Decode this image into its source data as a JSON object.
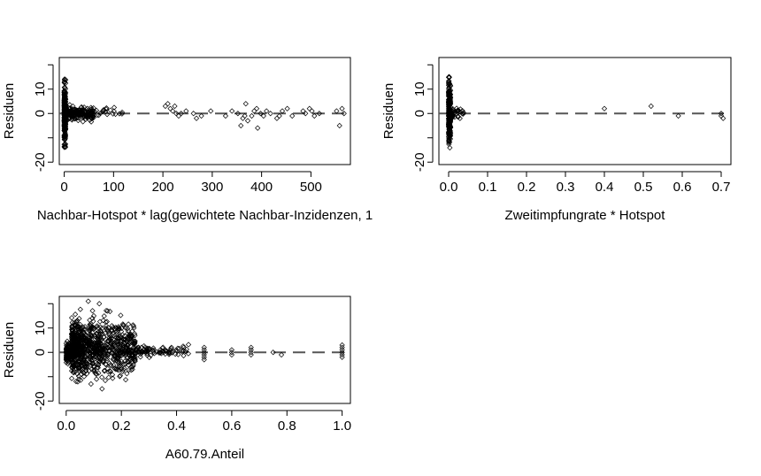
{
  "chart_data": [
    {
      "type": "scatter",
      "xlabel": "Nachbar-Hotspot * lag(gewichtete Nachbar-Inzidenzen, 1",
      "ylabel": "Residuen",
      "xlim": [
        -10,
        580
      ],
      "ylim": [
        -21,
        23
      ],
      "xticks": [
        0,
        100,
        200,
        300,
        400,
        500
      ],
      "yticks": [
        -20,
        -10,
        0,
        10,
        20
      ],
      "ytick_labels": [
        "-20",
        "",
        "0",
        "10",
        ""
      ],
      "reference_line": {
        "y": 0,
        "style": "dashed"
      },
      "point_groups": [
        {
          "x_range": [
            0,
            3
          ],
          "y_range": [
            -18,
            18
          ],
          "n": 260
        },
        {
          "x_range": [
            0,
            60
          ],
          "y_range": [
            -4,
            4
          ],
          "n": 220
        },
        {
          "x_range": [
            60,
            120
          ],
          "y_range": [
            -2,
            3
          ],
          "n": 20
        }
      ],
      "points": [
        [
          205,
          3
        ],
        [
          210,
          4
        ],
        [
          215,
          2
        ],
        [
          220,
          1
        ],
        [
          224,
          3
        ],
        [
          227,
          0
        ],
        [
          232,
          -1
        ],
        [
          237,
          0
        ],
        [
          247,
          1
        ],
        [
          262,
          0
        ],
        [
          268,
          -2
        ],
        [
          278,
          -1
        ],
        [
          297,
          1
        ],
        [
          327,
          -1
        ],
        [
          340,
          1
        ],
        [
          352,
          0
        ],
        [
          358,
          -5
        ],
        [
          362,
          -2
        ],
        [
          366,
          -1
        ],
        [
          368,
          4
        ],
        [
          372,
          -3
        ],
        [
          380,
          -1
        ],
        [
          385,
          1
        ],
        [
          390,
          2
        ],
        [
          392,
          -6
        ],
        [
          398,
          0
        ],
        [
          404,
          -1
        ],
        [
          410,
          1
        ],
        [
          418,
          0
        ],
        [
          431,
          -2
        ],
        [
          436,
          -1
        ],
        [
          442,
          1
        ],
        [
          452,
          2
        ],
        [
          462,
          -1
        ],
        [
          484,
          1
        ],
        [
          489,
          0
        ],
        [
          497,
          2
        ],
        [
          502,
          1
        ],
        [
          507,
          -1
        ],
        [
          517,
          0
        ],
        [
          552,
          1
        ],
        [
          558,
          -5
        ],
        [
          563,
          2
        ],
        [
          567,
          0
        ]
      ]
    },
    {
      "type": "scatter",
      "xlabel": "Zweitimpfungrate * Hotspot",
      "ylabel": "Residuen",
      "xlim": [
        -0.025,
        0.725
      ],
      "ylim": [
        -21,
        23
      ],
      "xticks": [
        0.0,
        0.1,
        0.2,
        0.3,
        0.4,
        0.5,
        0.6,
        0.7
      ],
      "xtick_labels": [
        "0.0",
        "0.1",
        "0.2",
        "0.3",
        "0.4",
        "0.5",
        "0.6",
        "0.7"
      ],
      "yticks": [
        -20,
        -10,
        0,
        10,
        20
      ],
      "ytick_labels": [
        "-20",
        "",
        "0",
        "10",
        ""
      ],
      "reference_line": {
        "y": 0,
        "style": "dashed"
      },
      "point_groups": [
        {
          "x_range": [
            0,
            0.005
          ],
          "y_range": [
            -18,
            18
          ],
          "n": 280
        },
        {
          "x_range": [
            0.005,
            0.04
          ],
          "y_range": [
            -3,
            3
          ],
          "n": 40
        }
      ],
      "points": [
        [
          0.4,
          2
        ],
        [
          0.52,
          3
        ],
        [
          0.59,
          -1
        ],
        [
          0.7,
          0
        ],
        [
          0.7,
          -1
        ],
        [
          0.705,
          -2
        ]
      ]
    },
    {
      "type": "scatter",
      "xlabel": "A60.79.Anteil",
      "ylabel": "Residuen",
      "xlim": [
        -0.025,
        1.03
      ],
      "ylim": [
        -21,
        23
      ],
      "xticks": [
        0.0,
        0.2,
        0.4,
        0.6,
        0.8,
        1.0
      ],
      "xtick_labels": [
        "0.0",
        "0.2",
        "0.4",
        "0.6",
        "0.8",
        "1.0"
      ],
      "yticks": [
        -20,
        -10,
        0,
        10,
        20
      ],
      "ytick_labels": [
        "-20",
        "",
        "0",
        "10",
        ""
      ],
      "reference_line": {
        "y": 0,
        "style": "dashed"
      },
      "point_groups": [
        {
          "x_range": [
            0,
            0.02
          ],
          "y_range": [
            -6,
            6
          ],
          "n": 120
        },
        {
          "x_range": [
            0.02,
            0.25
          ],
          "y_range": [
            -14,
            18
          ],
          "n": 900
        },
        {
          "x_range": [
            0.25,
            0.45
          ],
          "y_range": [
            -3,
            4
          ],
          "n": 90
        }
      ],
      "points": [
        [
          0.08,
          21
        ],
        [
          0.12,
          20
        ],
        [
          0.15,
          17
        ],
        [
          0.1,
          15
        ],
        [
          0.09,
          -13
        ],
        [
          0.13,
          -15
        ],
        [
          0.11,
          -11
        ],
        [
          0.5,
          2
        ],
        [
          0.5,
          1
        ],
        [
          0.5,
          0
        ],
        [
          0.5,
          -1
        ],
        [
          0.5,
          -2
        ],
        [
          0.5,
          -3
        ],
        [
          0.6,
          1
        ],
        [
          0.6,
          0
        ],
        [
          0.6,
          -1
        ],
        [
          0.67,
          2
        ],
        [
          0.67,
          1
        ],
        [
          0.67,
          0
        ],
        [
          0.67,
          -1
        ],
        [
          0.75,
          0
        ],
        [
          0.78,
          -1
        ],
        [
          1.0,
          3
        ],
        [
          1.0,
          2
        ],
        [
          1.0,
          1
        ],
        [
          1.0,
          0
        ],
        [
          1.0,
          -1
        ],
        [
          1.0,
          -2
        ]
      ]
    }
  ]
}
